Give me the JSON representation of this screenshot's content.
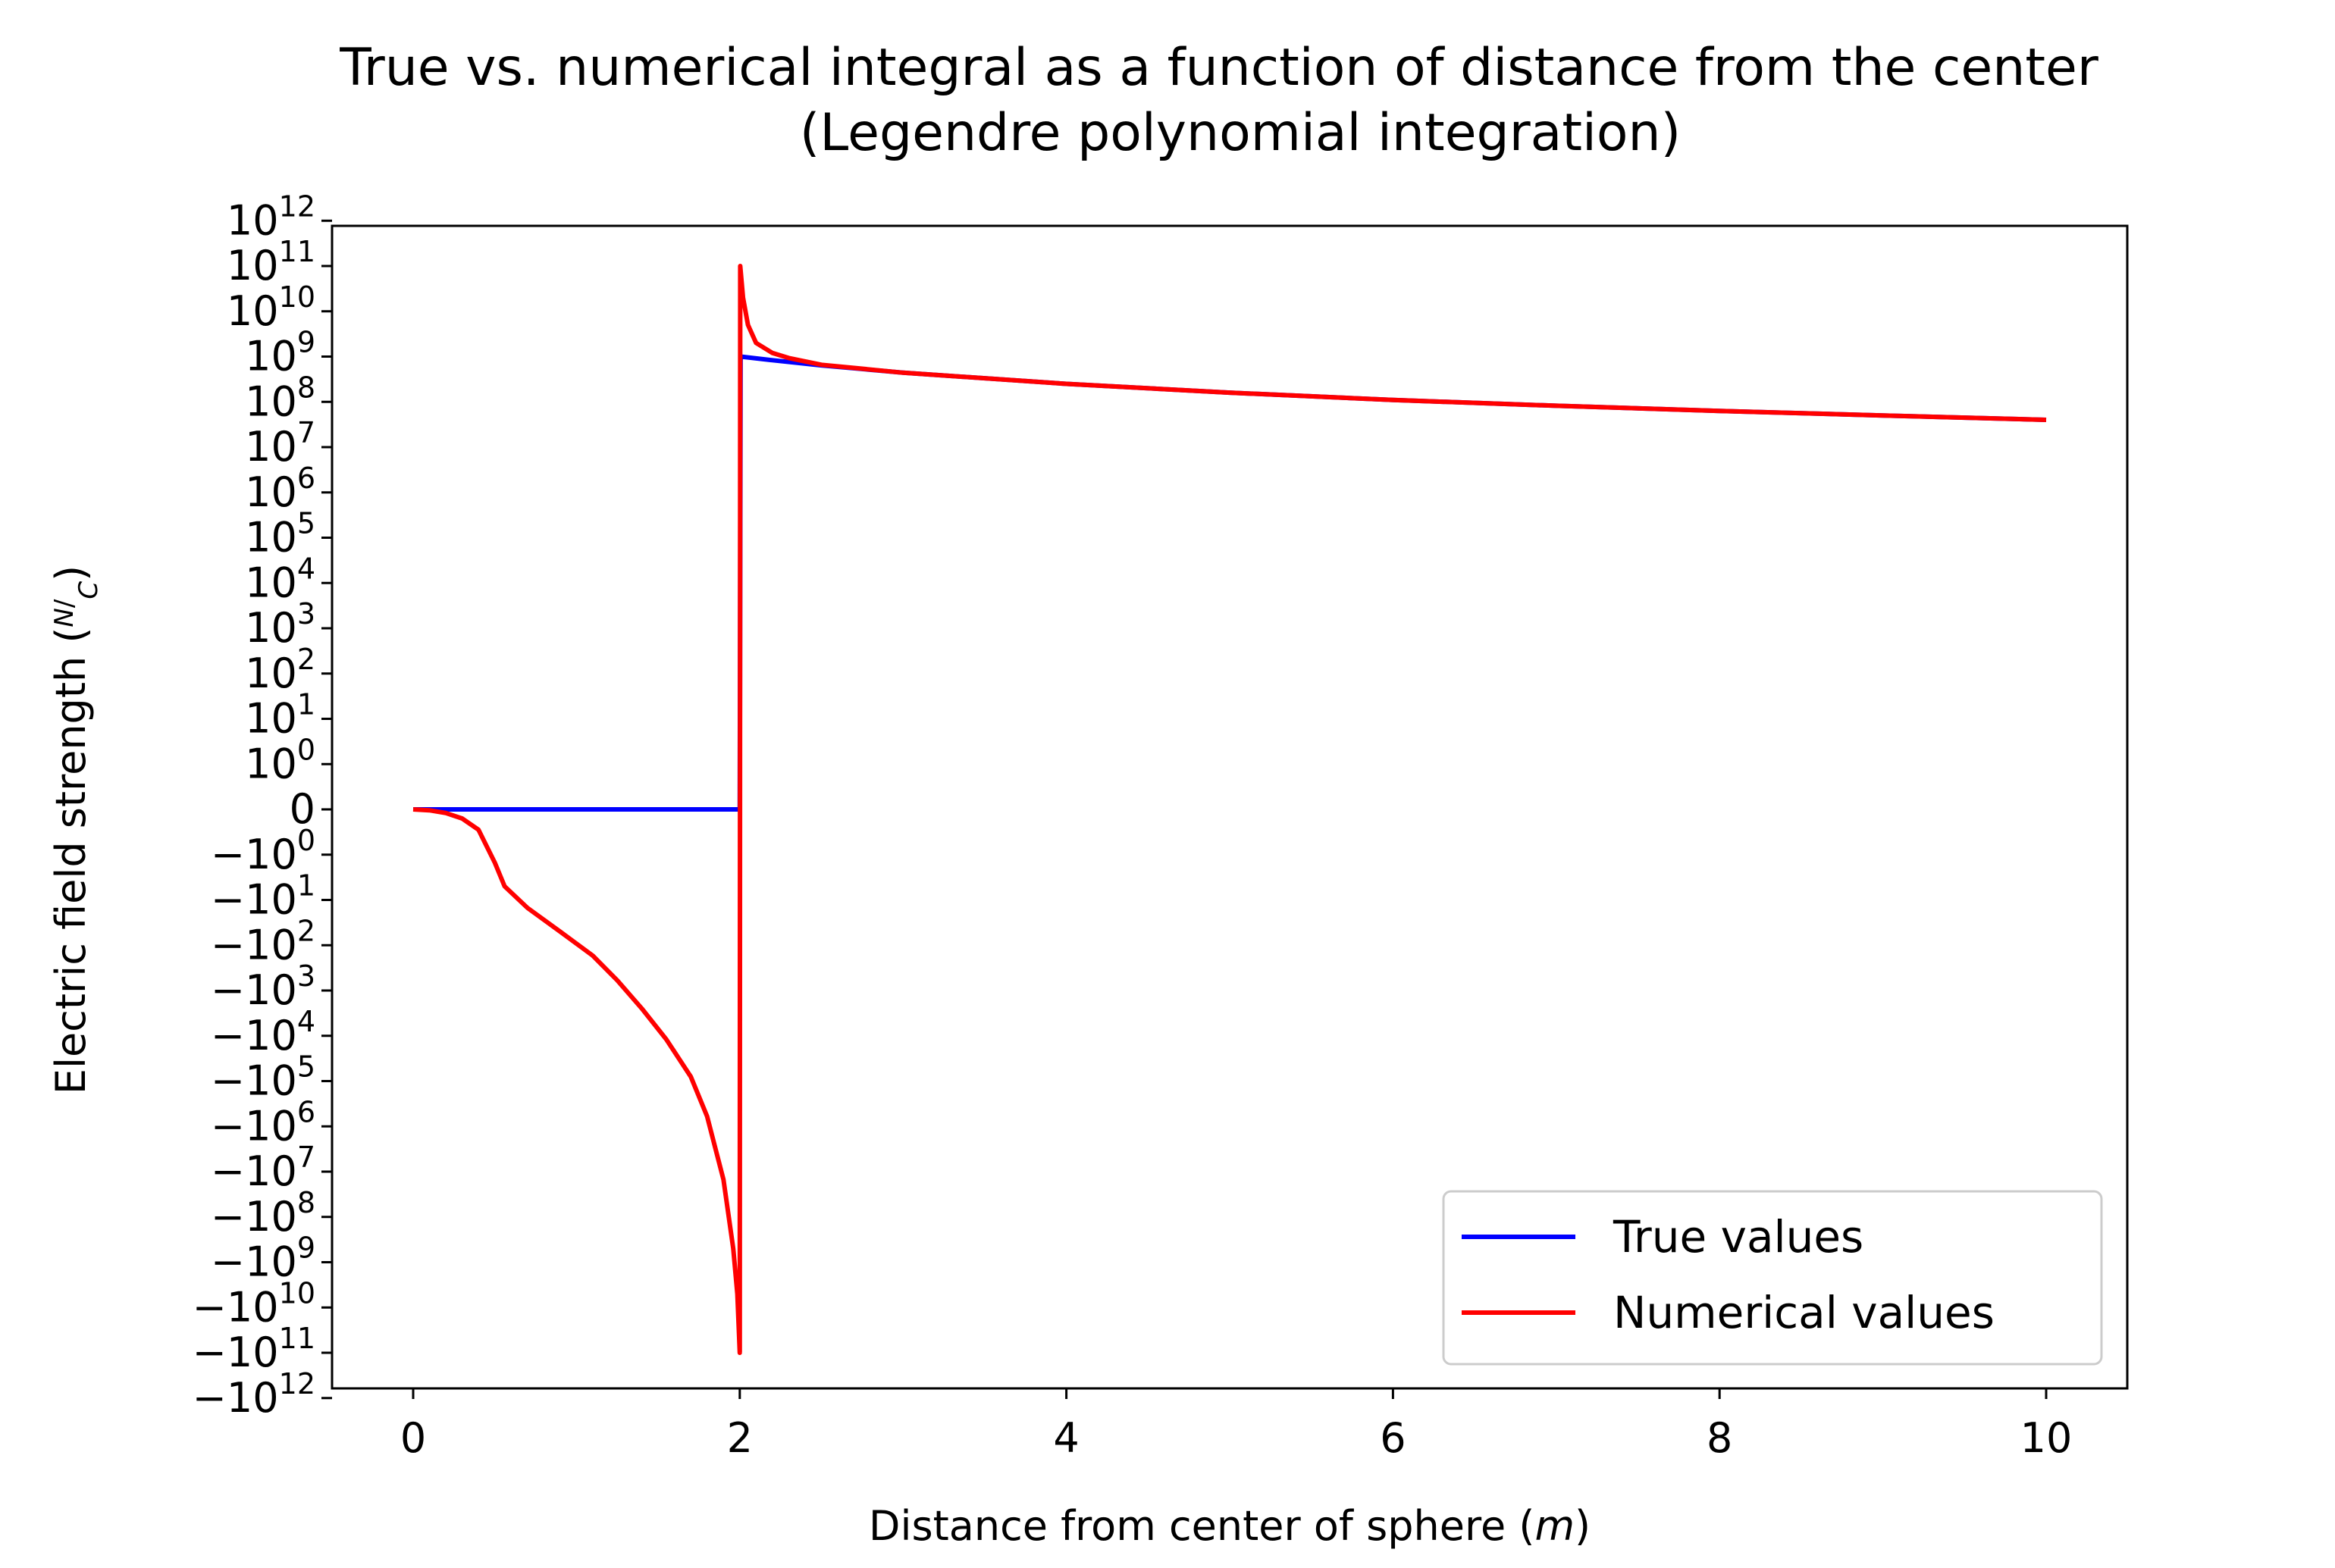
{
  "chart_data": {
    "type": "line",
    "title": "True vs. numerical integral as a function of distance from the center",
    "subtitle": "(Legendre polynomial integration)",
    "xlabel": "Distance from center of sphere (m)",
    "ylabel": "Electric field strength (N/C)",
    "xlim": [
      -0.5,
      10.5
    ],
    "ylim": [
      -1000000000000.0,
      1000000000000.0
    ],
    "yscale": "symlog",
    "grid": false,
    "legend": "lower right",
    "x_ticks": [
      "0",
      "2",
      "4",
      "6",
      "8",
      "10"
    ],
    "y_ticks": [
      {
        "label": "−10",
        "exp": "12",
        "value": -1000000000000.0
      },
      {
        "label": "−10",
        "exp": "11",
        "value": -100000000000.0
      },
      {
        "label": "−10",
        "exp": "10",
        "value": -10000000000.0
      },
      {
        "label": "−10",
        "exp": "9",
        "value": -1000000000.0
      },
      {
        "label": "−10",
        "exp": "8",
        "value": -100000000.0
      },
      {
        "label": "−10",
        "exp": "7",
        "value": -10000000.0
      },
      {
        "label": "−10",
        "exp": "6",
        "value": -1000000.0
      },
      {
        "label": "−10",
        "exp": "5",
        "value": -100000.0
      },
      {
        "label": "−10",
        "exp": "4",
        "value": -10000.0
      },
      {
        "label": "−10",
        "exp": "3",
        "value": -1000.0
      },
      {
        "label": "−10",
        "exp": "2",
        "value": -100.0
      },
      {
        "label": "−10",
        "exp": "1",
        "value": -10.0
      },
      {
        "label": "−10",
        "exp": "0",
        "value": -1
      },
      {
        "label": "0",
        "exp": "",
        "value": 0
      },
      {
        "label": "10",
        "exp": "0",
        "value": 1
      },
      {
        "label": "10",
        "exp": "1",
        "value": 10.0
      },
      {
        "label": "10",
        "exp": "2",
        "value": 100.0
      },
      {
        "label": "10",
        "exp": "3",
        "value": 1000.0
      },
      {
        "label": "10",
        "exp": "4",
        "value": 10000.0
      },
      {
        "label": "10",
        "exp": "5",
        "value": 100000.0
      },
      {
        "label": "10",
        "exp": "6",
        "value": 1000000.0
      },
      {
        "label": "10",
        "exp": "7",
        "value": 10000000.0
      },
      {
        "label": "10",
        "exp": "8",
        "value": 100000000.0
      },
      {
        "label": "10",
        "exp": "9",
        "value": 1000000000.0
      },
      {
        "label": "10",
        "exp": "10",
        "value": 10000000000.0
      },
      {
        "label": "10",
        "exp": "11",
        "value": 100000000000.0
      },
      {
        "label": "10",
        "exp": "12",
        "value": 1000000000000.0
      }
    ],
    "series": [
      {
        "name": "True values",
        "color": "#0000ff",
        "points": [
          [
            0,
            0
          ],
          [
            2,
            0
          ],
          [
            2.005,
            1000000000.0
          ],
          [
            2.2,
            830000000.0
          ],
          [
            2.5,
            640000000.0
          ],
          [
            3,
            440000000.0
          ],
          [
            4,
            250000000.0
          ],
          [
            5,
            160000000.0
          ],
          [
            6,
            110000000.0
          ],
          [
            7,
            82000000.0
          ],
          [
            8,
            63000000.0
          ],
          [
            9,
            50000000.0
          ],
          [
            10,
            40000000.0
          ]
        ]
      },
      {
        "name": "Numerical values",
        "color": "#ff0000",
        "points": [
          [
            0,
            0
          ],
          [
            0.1,
            -0.02
          ],
          [
            0.2,
            -0.08
          ],
          [
            0.3,
            -0.2
          ],
          [
            0.4,
            -0.45
          ],
          [
            0.5,
            -1.5
          ],
          [
            0.56,
            -5
          ],
          [
            0.7,
            -15
          ],
          [
            0.9,
            -50
          ],
          [
            1.1,
            -170
          ],
          [
            1.25,
            -600
          ],
          [
            1.4,
            -2500
          ],
          [
            1.55,
            -12000.0
          ],
          [
            1.7,
            -80000.0
          ],
          [
            1.8,
            -600000.0
          ],
          [
            1.9,
            -15000000.0
          ],
          [
            1.96,
            -500000000.0
          ],
          [
            1.985,
            -5000000000.0
          ],
          [
            2.0,
            -100000000000.0
          ],
          [
            2.003,
            100000000000.0
          ],
          [
            2.02,
            20000000000.0
          ],
          [
            2.05,
            5000000000.0
          ],
          [
            2.1,
            2000000000.0
          ],
          [
            2.2,
            1200000000.0
          ],
          [
            2.3,
            930000000.0
          ],
          [
            2.5,
            660000000.0
          ],
          [
            3,
            440000000.0
          ],
          [
            4,
            250000000.0
          ],
          [
            5,
            160000000.0
          ],
          [
            6,
            110000000.0
          ],
          [
            7,
            82000000.0
          ],
          [
            8,
            63000000.0
          ],
          [
            9,
            50000000.0
          ],
          [
            10,
            40000000.0
          ]
        ]
      }
    ]
  }
}
